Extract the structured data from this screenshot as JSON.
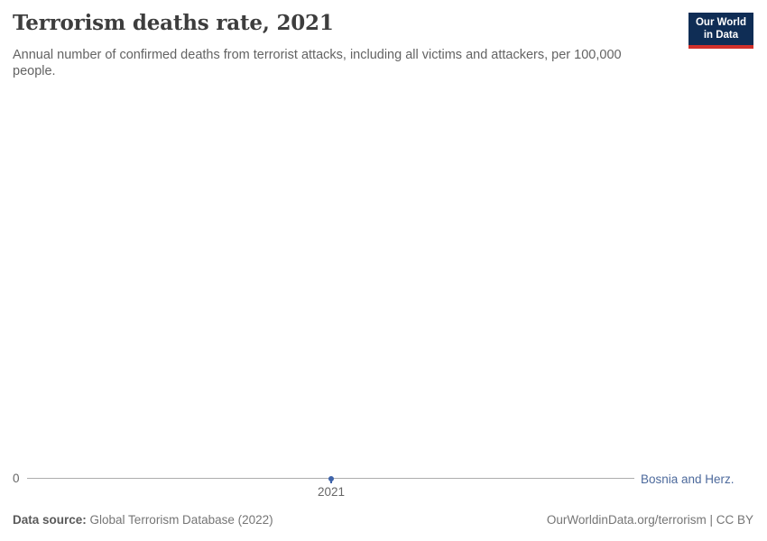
{
  "header": {
    "title": "Terrorism deaths rate, 2021",
    "subtitle": "Annual number of confirmed deaths from terrorist attacks, including all victims and attackers, per 100,000 people.",
    "logo": {
      "line1": "Our World",
      "line2": "in Data"
    }
  },
  "chart_data": {
    "type": "line",
    "title": "Terrorism deaths rate, 2021",
    "x": [
      2021
    ],
    "series": [
      {
        "name": "Bosnia and Herz.",
        "values": [
          0
        ],
        "color": "#3e63a9"
      }
    ],
    "x_tick_labels": [
      "2021"
    ],
    "y_tick_labels": [
      "0"
    ],
    "ylim": [
      0,
      0
    ],
    "grid": false,
    "legend_position": "right-of-line-end",
    "xlabel": "",
    "ylabel": ""
  },
  "footer": {
    "data_source_label": "Data source:",
    "data_source_value": " Global Terrorism Database (2022)",
    "credit": "OurWorldinData.org/terrorism | CC BY"
  },
  "colors": {
    "series_blue": "#3e63a9",
    "entity_label_blue": "#4d6a9c",
    "logo_navy": "#0f2d55",
    "logo_red": "#d2302a",
    "axis_line": "#adadad",
    "axis_text": "#666666",
    "title_text": "#3d3d3d",
    "subtitle_text": "#636363",
    "footer_text": "#757575"
  }
}
